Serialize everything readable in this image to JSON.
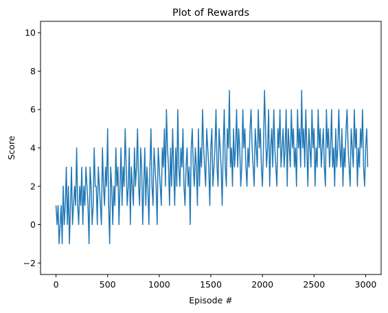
{
  "chart_data": {
    "type": "line",
    "title": "Plot of Rewards",
    "xlabel": "Episode #",
    "ylabel": "Score",
    "xlim": [
      -150,
      3150
    ],
    "ylim": [
      -2.6,
      10.6
    ],
    "xticks": [
      0,
      500,
      1000,
      1500,
      2000,
      2500,
      3000
    ],
    "yticks": [
      -2,
      0,
      2,
      4,
      6,
      8,
      10
    ],
    "ytick_labels": [
      "−2",
      "0",
      "2",
      "4",
      "6",
      "8",
      "10"
    ],
    "grid": false,
    "series_color": "#1f77b4",
    "series": [
      {
        "x_start": 0,
        "x_step": 10,
        "values": [
          1,
          0,
          1,
          -1,
          0,
          1,
          -1,
          2,
          0,
          1,
          3,
          0,
          2,
          -1,
          1,
          3,
          0,
          1,
          2,
          1,
          4,
          1,
          0,
          2,
          1,
          3,
          0,
          2,
          1,
          3,
          2,
          1,
          -1,
          3,
          2,
          0,
          1,
          4,
          2,
          2,
          0,
          3,
          2,
          1,
          0,
          4,
          2,
          1,
          3,
          2,
          5,
          1,
          -1,
          3,
          2,
          0,
          2,
          1,
          4,
          2,
          3,
          0,
          2,
          4,
          1,
          3,
          2,
          5,
          3,
          1,
          2,
          4,
          0,
          3,
          2,
          1,
          4,
          2,
          3,
          5,
          2,
          1,
          4,
          3,
          0,
          2,
          4,
          1,
          3,
          2,
          0,
          3,
          5,
          2,
          1,
          4,
          3,
          2,
          0,
          4,
          3,
          2,
          1,
          4,
          3,
          5,
          2,
          6,
          4,
          3,
          1,
          4,
          2,
          5,
          3,
          1,
          4,
          2,
          6,
          3,
          2,
          4,
          3,
          5,
          2,
          1,
          3,
          4,
          2,
          3,
          0,
          4,
          5,
          3,
          2,
          4,
          3,
          1,
          5,
          2,
          4,
          3,
          6,
          4,
          3,
          2,
          5,
          4,
          3,
          1,
          4,
          5,
          2,
          3,
          4,
          6,
          3,
          2,
          5,
          4,
          3,
          1,
          4,
          6,
          3,
          2,
          5,
          4,
          7,
          3,
          4,
          2,
          5,
          3,
          4,
          6,
          3,
          5,
          4,
          2,
          3,
          6,
          4,
          5,
          3,
          2,
          4,
          3,
          5,
          6,
          4,
          3,
          2,
          5,
          4,
          3,
          6,
          4,
          5,
          3,
          2,
          4,
          7,
          5,
          3,
          4,
          6,
          2,
          4,
          5,
          3,
          6,
          4,
          3,
          2,
          5,
          4,
          6,
          3,
          4,
          5,
          3,
          4,
          6,
          2,
          5,
          4,
          3,
          6,
          4,
          5,
          3,
          4,
          2,
          6,
          4,
          5,
          3,
          7,
          4,
          5,
          3,
          6,
          4,
          2,
          5,
          4,
          3,
          6,
          4,
          5,
          2,
          4,
          3,
          6,
          4,
          5,
          3,
          4,
          5,
          3,
          2,
          6,
          4,
          5,
          3,
          4,
          6,
          3,
          4,
          2,
          5,
          3,
          4,
          6,
          4,
          3,
          5,
          2,
          4,
          3,
          5,
          6,
          4,
          3,
          2,
          5,
          4,
          3,
          6,
          4,
          5,
          2,
          4,
          3,
          5,
          4,
          6,
          3,
          2,
          4,
          5,
          3
        ]
      }
    ]
  }
}
